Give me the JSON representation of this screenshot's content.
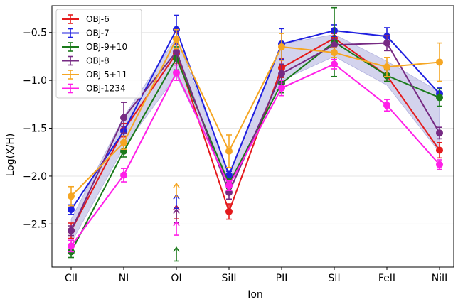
{
  "chart_data": {
    "type": "line",
    "xlabel": "Ion",
    "ylabel": "Log(X/H)",
    "categories": [
      "CII",
      "NI",
      "OI",
      "SiII",
      "PII",
      "SII",
      "FeII",
      "NiII"
    ],
    "ylim": [
      -2.95,
      -0.22
    ],
    "yticks": [
      -2.5,
      -2.0,
      -1.5,
      -1.0,
      -0.5
    ],
    "ytick_labels": [
      "−2.5",
      "−2.0",
      "−1.5",
      "−1.0",
      "−0.5"
    ],
    "grid": true,
    "legend_position": "top-left",
    "band": {
      "color": "#8080cc",
      "upper": [
        -2.45,
        -1.38,
        -0.55,
        -1.97,
        -0.62,
        -0.52,
        -0.8,
        -1.12
      ],
      "lower": [
        -2.7,
        -1.7,
        -0.95,
        -2.08,
        -1.0,
        -0.75,
        -1.05,
        -1.75
      ]
    },
    "series": [
      {
        "name": "OBJ-6",
        "color": "#e41a1c",
        "values": [
          -2.57,
          -1.52,
          -0.72,
          -2.37,
          -0.87,
          -0.56,
          -0.95,
          -1.73
        ],
        "errors": [
          0.08,
          0.07,
          0.1,
          0.08,
          0.1,
          0.05,
          0.06,
          0.08
        ],
        "upper_limit_index": 2,
        "upper_limit_value": -2.38
      },
      {
        "name": "OBJ-7",
        "color": "#1f1fe0",
        "values": [
          -2.35,
          -1.53,
          -0.47,
          -1.99,
          -0.62,
          -0.48,
          -0.54,
          -1.14
        ],
        "errors": [
          0.05,
          0.05,
          0.15,
          0.04,
          0.16,
          0.06,
          0.09,
          0.06
        ],
        "upper_limit_index": 2,
        "upper_limit_value": -2.27
      },
      {
        "name": "OBJ-9+10",
        "color": "#1a7a1a",
        "values": [
          -2.79,
          -1.74,
          -0.77,
          -2.08,
          -1.03,
          -0.6,
          -0.95,
          -1.18
        ],
        "errors": [
          0.06,
          0.06,
          0.12,
          0.05,
          0.1,
          0.36,
          0.06,
          0.09
        ],
        "upper_limit_index": 2,
        "upper_limit_value": -2.82
      },
      {
        "name": "OBJ-8",
        "color": "#762a83",
        "values": [
          -2.57,
          -1.39,
          -0.7,
          -2.17,
          -0.93,
          -0.63,
          -0.61,
          -1.55
        ],
        "errors": [
          0.05,
          0.16,
          0.2,
          0.07,
          0.1,
          0.06,
          0.08,
          0.06
        ],
        "upper_limit_index": 2,
        "upper_limit_value": -2.42
      },
      {
        "name": "OBJ-5+11",
        "color": "#f5a623",
        "values": [
          -2.21,
          -1.65,
          -0.57,
          -1.74,
          -0.65,
          -0.71,
          -0.86,
          -0.81
        ],
        "errors": [
          0.1,
          0.07,
          0.1,
          0.17,
          0.14,
          0.05,
          0.1,
          0.2
        ],
        "upper_limit_index": 2,
        "upper_limit_value": -2.15
      },
      {
        "name": "OBJ-1234",
        "color": "#ff1fe8",
        "values": [
          -2.73,
          -1.99,
          -0.92,
          -2.1,
          -1.08,
          -0.83,
          -1.26,
          -1.88
        ],
        "errors": [
          0.06,
          0.07,
          0.08,
          0.05,
          0.08,
          0.05,
          0.06,
          0.05
        ],
        "upper_limit_index": 2,
        "upper_limit_value": -2.55
      }
    ]
  }
}
